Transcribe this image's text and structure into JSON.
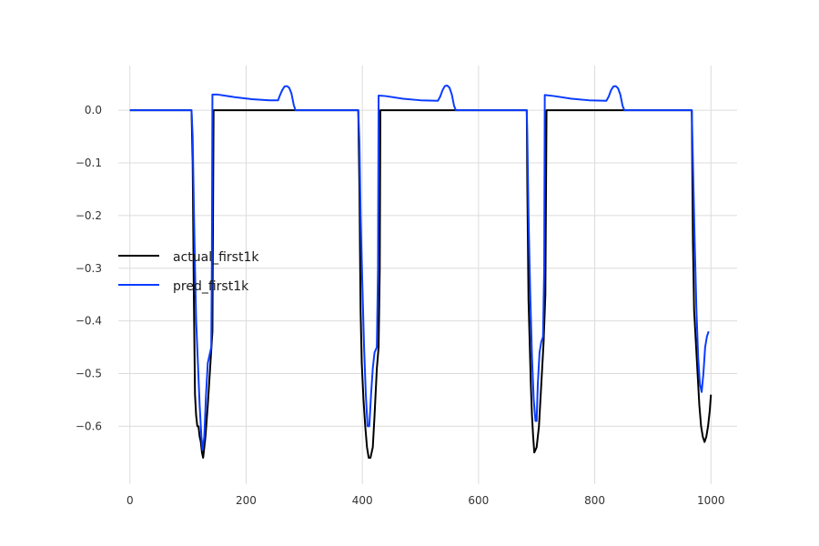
{
  "chart_data": {
    "type": "line",
    "title": "",
    "xlabel": "",
    "ylabel": "",
    "xlim": [
      -20,
      1045
    ],
    "ylim": [
      -0.71,
      0.085
    ],
    "xticks": [
      0,
      200,
      400,
      600,
      800,
      1000
    ],
    "xtick_labels": [
      "0",
      "200",
      "400",
      "600",
      "800",
      "1000"
    ],
    "yticks": [
      0.0,
      -0.1,
      -0.2,
      -0.3,
      -0.4,
      -0.5,
      -0.6
    ],
    "ytick_labels": [
      "0.0",
      "−0.1",
      "−0.2",
      "−0.3",
      "−0.4",
      "−0.5",
      "−0.6"
    ],
    "grid": true,
    "legend_position": "center-left",
    "series": [
      {
        "name": "actual_first1k",
        "color": "#000000",
        "points": [
          [
            0,
            0
          ],
          [
            106,
            0
          ],
          [
            108,
            -0.1
          ],
          [
            110,
            -0.35
          ],
          [
            112,
            -0.54
          ],
          [
            114,
            -0.58
          ],
          [
            116,
            -0.6
          ],
          [
            118,
            -0.6
          ],
          [
            120,
            -0.62
          ],
          [
            122,
            -0.63
          ],
          [
            124,
            -0.65
          ],
          [
            126,
            -0.66
          ],
          [
            128,
            -0.64
          ],
          [
            130,
            -0.62
          ],
          [
            134,
            -0.56
          ],
          [
            138,
            -0.49
          ],
          [
            142,
            -0.42
          ],
          [
            143,
            -0.2
          ],
          [
            144,
            0
          ],
          [
            393,
            0
          ],
          [
            395,
            -0.15
          ],
          [
            397,
            -0.38
          ],
          [
            399,
            -0.48
          ],
          [
            402,
            -0.55
          ],
          [
            405,
            -0.6
          ],
          [
            408,
            -0.64
          ],
          [
            411,
            -0.66
          ],
          [
            414,
            -0.66
          ],
          [
            418,
            -0.64
          ],
          [
            421,
            -0.58
          ],
          [
            425,
            -0.49
          ],
          [
            428,
            -0.45
          ],
          [
            430,
            -0.3
          ],
          [
            431,
            0
          ],
          [
            683,
            0
          ],
          [
            684,
            -0.15
          ],
          [
            686,
            -0.36
          ],
          [
            688,
            -0.44
          ],
          [
            690,
            -0.52
          ],
          [
            692,
            -0.58
          ],
          [
            694,
            -0.62
          ],
          [
            696,
            -0.65
          ],
          [
            700,
            -0.64
          ],
          [
            704,
            -0.6
          ],
          [
            708,
            -0.52
          ],
          [
            712,
            -0.44
          ],
          [
            715,
            -0.35
          ],
          [
            717,
            0
          ],
          [
            967,
            0
          ],
          [
            969,
            -0.25
          ],
          [
            971,
            -0.38
          ],
          [
            974,
            -0.44
          ],
          [
            977,
            -0.5
          ],
          [
            980,
            -0.56
          ],
          [
            983,
            -0.6
          ],
          [
            986,
            -0.62
          ],
          [
            989,
            -0.63
          ],
          [
            992,
            -0.62
          ],
          [
            995,
            -0.6
          ],
          [
            998,
            -0.57
          ],
          [
            1000,
            -0.54
          ]
        ]
      },
      {
        "name": "pred_first1k",
        "color": "#0a3cff",
        "points": [
          [
            0,
            0
          ],
          [
            106,
            0
          ],
          [
            108,
            -0.05
          ],
          [
            110,
            -0.18
          ],
          [
            112,
            -0.3
          ],
          [
            114,
            -0.4
          ],
          [
            117,
            -0.48
          ],
          [
            120,
            -0.56
          ],
          [
            123,
            -0.62
          ],
          [
            125,
            -0.645
          ],
          [
            128,
            -0.62
          ],
          [
            131,
            -0.54
          ],
          [
            134,
            -0.48
          ],
          [
            138,
            -0.46
          ],
          [
            140,
            -0.45
          ],
          [
            141,
            -0.3
          ],
          [
            142,
            0.03
          ],
          [
            150,
            0.03
          ],
          [
            180,
            0.025
          ],
          [
            210,
            0.021
          ],
          [
            240,
            0.019
          ],
          [
            255,
            0.019
          ],
          [
            258,
            0.028
          ],
          [
            262,
            0.038
          ],
          [
            266,
            0.045
          ],
          [
            270,
            0.046
          ],
          [
            274,
            0.043
          ],
          [
            278,
            0.032
          ],
          [
            282,
            0.01
          ],
          [
            285,
            0
          ],
          [
            393,
            0
          ],
          [
            395,
            -0.06
          ],
          [
            397,
            -0.2
          ],
          [
            400,
            -0.33
          ],
          [
            403,
            -0.45
          ],
          [
            406,
            -0.54
          ],
          [
            409,
            -0.6
          ],
          [
            412,
            -0.6
          ],
          [
            415,
            -0.54
          ],
          [
            418,
            -0.49
          ],
          [
            421,
            -0.46
          ],
          [
            425,
            -0.45
          ],
          [
            427,
            -0.3
          ],
          [
            428,
            0.028
          ],
          [
            440,
            0.027
          ],
          [
            470,
            0.022
          ],
          [
            500,
            0.019
          ],
          [
            530,
            0.018
          ],
          [
            534,
            0.026
          ],
          [
            538,
            0.038
          ],
          [
            542,
            0.046
          ],
          [
            546,
            0.047
          ],
          [
            550,
            0.043
          ],
          [
            554,
            0.03
          ],
          [
            558,
            0.008
          ],
          [
            561,
            0
          ],
          [
            683,
            0
          ],
          [
            684,
            -0.05
          ],
          [
            686,
            -0.2
          ],
          [
            689,
            -0.35
          ],
          [
            692,
            -0.47
          ],
          [
            695,
            -0.55
          ],
          [
            698,
            -0.59
          ],
          [
            700,
            -0.59
          ],
          [
            702,
            -0.52
          ],
          [
            705,
            -0.46
          ],
          [
            708,
            -0.44
          ],
          [
            711,
            -0.43
          ],
          [
            713,
            -0.3
          ],
          [
            714,
            0.029
          ],
          [
            730,
            0.027
          ],
          [
            760,
            0.022
          ],
          [
            790,
            0.019
          ],
          [
            820,
            0.018
          ],
          [
            824,
            0.026
          ],
          [
            828,
            0.038
          ],
          [
            832,
            0.045
          ],
          [
            836,
            0.046
          ],
          [
            840,
            0.042
          ],
          [
            844,
            0.03
          ],
          [
            848,
            0.008
          ],
          [
            851,
            0
          ],
          [
            967,
            0
          ],
          [
            969,
            -0.1
          ],
          [
            972,
            -0.25
          ],
          [
            975,
            -0.38
          ],
          [
            978,
            -0.47
          ],
          [
            981,
            -0.52
          ],
          [
            984,
            -0.535
          ],
          [
            987,
            -0.5
          ],
          [
            990,
            -0.45
          ],
          [
            993,
            -0.43
          ],
          [
            996,
            -0.42
          ]
        ]
      }
    ]
  }
}
